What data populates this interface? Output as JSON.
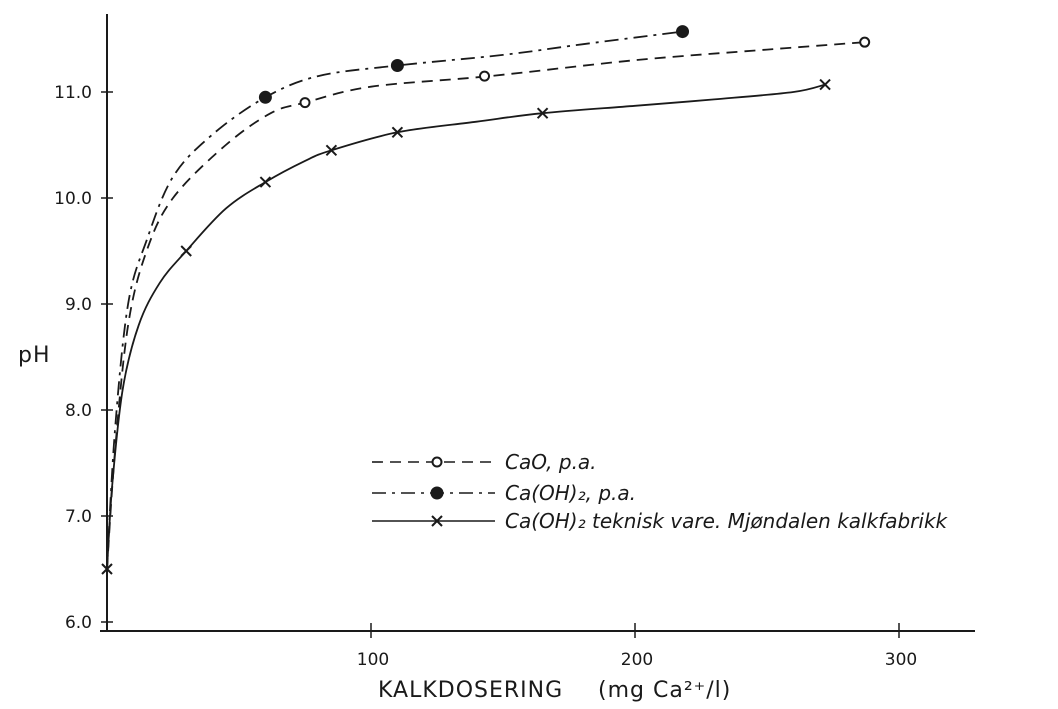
{
  "chart_data": {
    "type": "line",
    "title": "",
    "xlabel": "KALKDOSERING",
    "xunit": "(mg Ca²⁺/l)",
    "ylabel": "pH",
    "xlim": [
      0,
      325
    ],
    "ylim": [
      6.0,
      11.8
    ],
    "x_ticks": [
      {
        "value": 100,
        "label": "100"
      },
      {
        "value": 200,
        "label": "200"
      },
      {
        "value": 300,
        "label": "300"
      }
    ],
    "y_ticks": [
      {
        "value": 6.0,
        "label": "6.0"
      },
      {
        "value": 7.0,
        "label": "7.0"
      },
      {
        "value": 8.0,
        "label": "8.0"
      },
      {
        "value": 9.0,
        "label": "9.0"
      },
      {
        "value": 10.0,
        "label": "10.0"
      },
      {
        "value": 11.0,
        "label": "11.0"
      }
    ],
    "grid": false,
    "legend_position": "lower-right",
    "series": [
      {
        "name": "CaO, p.a.",
        "line_style": "dashed",
        "marker": "open-circle",
        "color": "#1a1a1a",
        "curve": [
          [
            0,
            6.5
          ],
          [
            3,
            7.6
          ],
          [
            8,
            8.8
          ],
          [
            15,
            9.5
          ],
          [
            25,
            10.0
          ],
          [
            45,
            10.5
          ],
          [
            62,
            10.8
          ],
          [
            75,
            10.9
          ],
          [
            100,
            11.05
          ],
          [
            145,
            11.15
          ],
          [
            200,
            11.3
          ],
          [
            250,
            11.4
          ],
          [
            287,
            11.47
          ]
        ],
        "points": [
          [
            75,
            10.9
          ],
          [
            143,
            11.15
          ],
          [
            287,
            11.47
          ]
        ]
      },
      {
        "name": "Ca(OH)₂, p.a.",
        "line_style": "dash-dot",
        "marker": "filled-circle",
        "color": "#1a1a1a",
        "curve": [
          [
            0,
            6.5
          ],
          [
            3,
            7.8
          ],
          [
            8,
            9.0
          ],
          [
            15,
            9.6
          ],
          [
            25,
            10.2
          ],
          [
            40,
            10.6
          ],
          [
            60,
            10.95
          ],
          [
            80,
            11.15
          ],
          [
            110,
            11.25
          ],
          [
            150,
            11.35
          ],
          [
            180,
            11.45
          ],
          [
            218,
            11.57
          ]
        ],
        "points": [
          [
            60,
            10.95
          ],
          [
            110,
            11.25
          ],
          [
            218,
            11.57
          ]
        ]
      },
      {
        "name": "Ca(OH)₂ teknisk vare. Mjøndalen kalkfabrikk",
        "line_style": "solid",
        "marker": "x",
        "color": "#1a1a1a",
        "curve": [
          [
            0,
            6.5
          ],
          [
            2,
            7.3
          ],
          [
            6,
            8.2
          ],
          [
            12,
            8.8
          ],
          [
            20,
            9.2
          ],
          [
            30,
            9.5
          ],
          [
            45,
            9.9
          ],
          [
            60,
            10.15
          ],
          [
            75,
            10.35
          ],
          [
            85,
            10.45
          ],
          [
            110,
            10.62
          ],
          [
            140,
            10.72
          ],
          [
            165,
            10.8
          ],
          [
            200,
            10.87
          ],
          [
            230,
            10.93
          ],
          [
            260,
            11.0
          ],
          [
            272,
            11.07
          ]
        ],
        "points": [
          [
            0,
            6.5
          ],
          [
            30,
            9.5
          ],
          [
            60,
            10.15
          ],
          [
            85,
            10.45
          ],
          [
            110,
            10.62
          ],
          [
            165,
            10.8
          ],
          [
            272,
            11.07
          ]
        ]
      }
    ]
  }
}
